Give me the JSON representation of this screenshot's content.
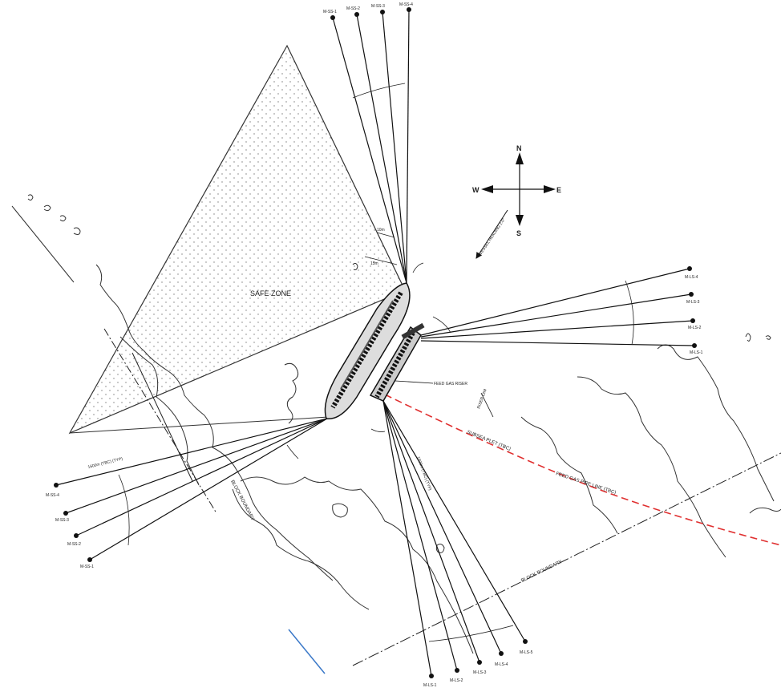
{
  "labels": {
    "safe_zone": "SAFE ZONE",
    "feed_gas_riser": "FEED GAS RISER",
    "subsea_plet": "SUBSEA PLET (TBC)",
    "feed_gas_pipe_line": "FEED GAS PIPE LINE (TBC)",
    "block_boundary_1": "BLOCK BOUNDARY",
    "block_boundary_2": "BLOCK BOUNDARY",
    "vessel_heading": "VESSEL HEADING 2.0°",
    "typ_dim_ss": "1600m (TBC) (TYP)",
    "typ_dim_ls": "1600m (TBC) (TYP)",
    "dim_10m": "10m",
    "dim_15m": "15m",
    "dim_riser": "RISER DIM"
  },
  "compass": {
    "n": "N",
    "s": "S",
    "e": "E",
    "w": "W"
  },
  "colors": {
    "line": "#111111",
    "pipeline": "#e03030",
    "safe_zone_dots": "#7a7a7a",
    "contour": "#333333",
    "blue_accent": "#3a78c8"
  },
  "moorings": {
    "ss_top": [
      {
        "id": "M-SS-1"
      },
      {
        "id": "M-SS-2"
      },
      {
        "id": "M-SS-3"
      },
      {
        "id": "M-SS-4"
      }
    ],
    "ls_right": [
      {
        "id": "M-LS-4"
      },
      {
        "id": "M-LS-3"
      },
      {
        "id": "M-LS-2"
      },
      {
        "id": "M-LS-1"
      }
    ],
    "ss_left": [
      {
        "id": "M-SS-4"
      },
      {
        "id": "M-SS-3"
      },
      {
        "id": "M-SS-2"
      },
      {
        "id": "M-SS-1"
      }
    ],
    "ls_bottom": [
      {
        "id": "M-LS-1"
      },
      {
        "id": "M-LS-2"
      },
      {
        "id": "M-LS-3"
      },
      {
        "id": "M-LS-4"
      },
      {
        "id": "M-LS-5"
      }
    ]
  }
}
